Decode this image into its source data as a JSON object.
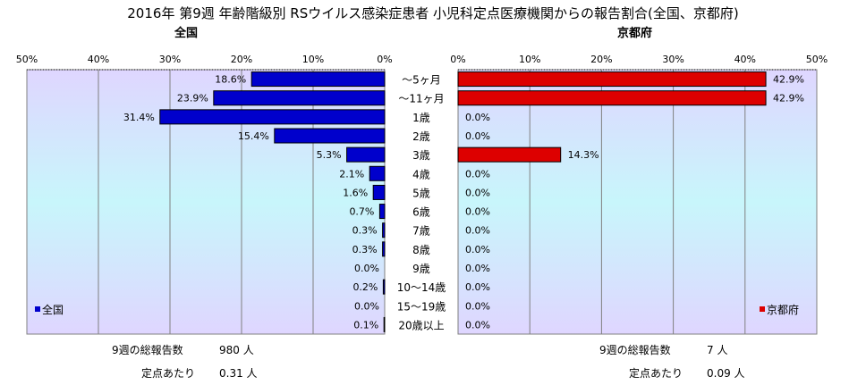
{
  "chart_data": {
    "type": "bar",
    "title": "2016年 第9週 年齢階級別 RSウイルス感染症患者 小児科定点医療機関からの報告割合(全国、京都府)",
    "categories": [
      "～5ヶ月",
      "～11ヶ月",
      "1歳",
      "2歳",
      "3歳",
      "4歳",
      "5歳",
      "6歳",
      "7歳",
      "8歳",
      "9歳",
      "10～14歳",
      "15～19歳",
      "20歳以上"
    ],
    "xlim": [
      0,
      50
    ],
    "x_ticks": [
      "50%",
      "40%",
      "30%",
      "20%",
      "10%",
      "0%"
    ],
    "x_ticks_right": [
      "0%",
      "10%",
      "20%",
      "30%",
      "40%",
      "50%"
    ],
    "grid": true,
    "panels": [
      {
        "subtitle": "全国",
        "legend": "全国",
        "legend_position": "bottom-left",
        "color": "#0000cc",
        "values": [
          18.6,
          23.9,
          31.4,
          15.4,
          5.3,
          2.1,
          1.6,
          0.7,
          0.3,
          0.3,
          0.0,
          0.2,
          0.0,
          0.1
        ],
        "value_labels": [
          "18.6%",
          "23.9%",
          "31.4%",
          "15.4%",
          "5.3%",
          "2.1%",
          "1.6%",
          "0.7%",
          "0.3%",
          "0.3%",
          "0.0%",
          "0.2%",
          "0.0%",
          "0.1%"
        ],
        "stats": [
          {
            "label": "9週の総報告数",
            "value": "980 人"
          },
          {
            "label": "定点あたり",
            "value": "0.31 人"
          }
        ]
      },
      {
        "subtitle": "京都府",
        "legend": "京都府",
        "legend_position": "bottom-right",
        "color": "#dd0000",
        "values": [
          42.9,
          42.9,
          0.0,
          0.0,
          14.3,
          0.0,
          0.0,
          0.0,
          0.0,
          0.0,
          0.0,
          0.0,
          0.0,
          0.0
        ],
        "value_labels": [
          "42.9%",
          "42.9%",
          "0.0%",
          "0.0%",
          "14.3%",
          "0.0%",
          "0.0%",
          "0.0%",
          "0.0%",
          "0.0%",
          "0.0%",
          "0.0%",
          "0.0%",
          "0.0%"
        ],
        "stats": [
          {
            "label": "9週の総報告数",
            "value": "7 人"
          },
          {
            "label": "定点あたり",
            "value": "0.09 人"
          }
        ]
      }
    ]
  }
}
